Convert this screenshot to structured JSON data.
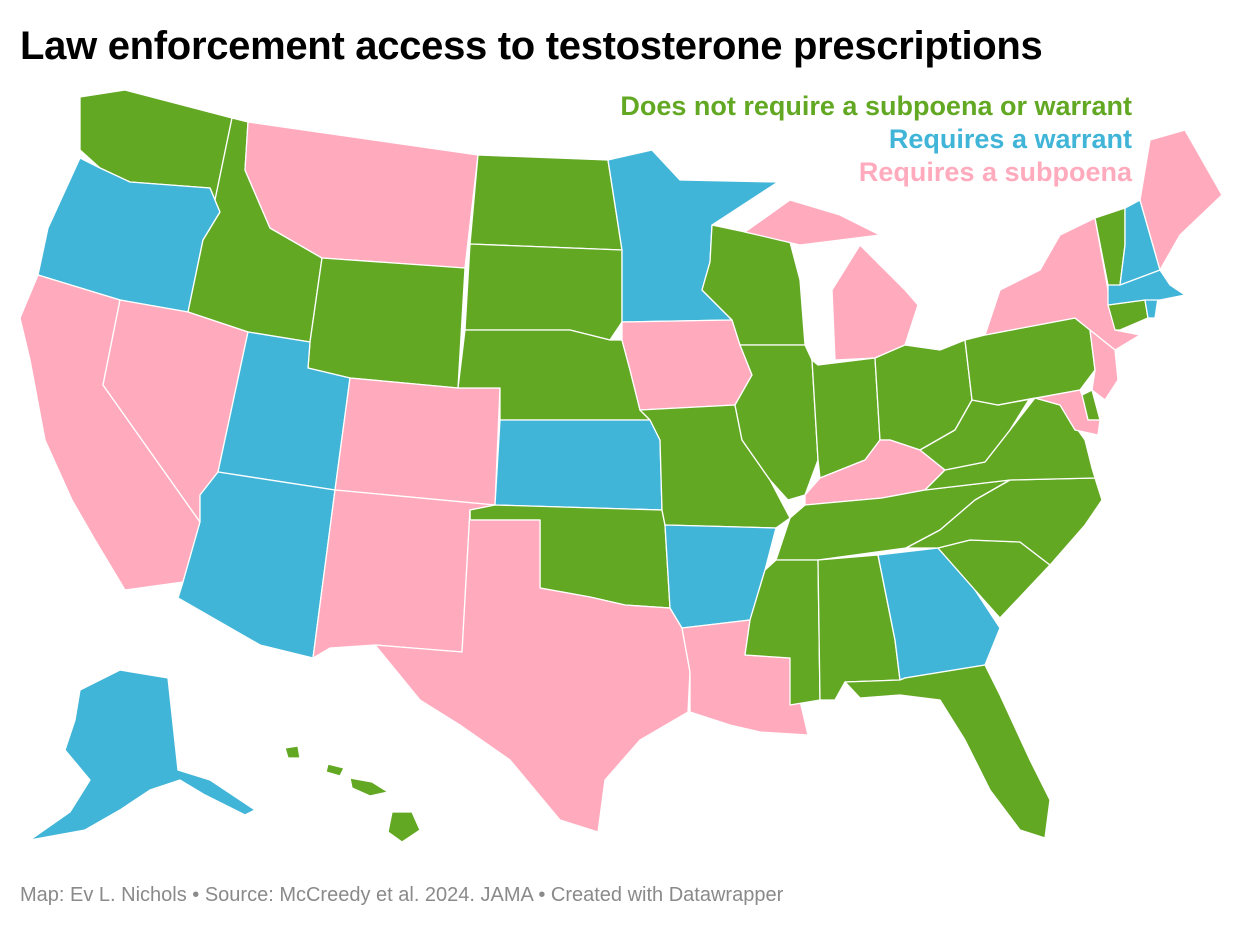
{
  "title": "Law enforcement access to testosterone prescriptions",
  "legend": [
    {
      "key": "none",
      "label": "Does not require a subpoena or warrant",
      "color": "#62a823"
    },
    {
      "key": "warrant",
      "label": "Requires a warrant",
      "color": "#40b5d8"
    },
    {
      "key": "subpoena",
      "label": "Requires a subpoena",
      "color": "#ffabbd"
    }
  ],
  "states": {
    "WA": "none",
    "OR": "warrant",
    "CA": "subpoena",
    "ID": "none",
    "NV": "subpoena",
    "MT": "subpoena",
    "WY": "none",
    "UT": "warrant",
    "AZ": "warrant",
    "CO": "subpoena",
    "NM": "subpoena",
    "ND": "none",
    "SD": "none",
    "NE": "none",
    "KS": "warrant",
    "OK": "none",
    "TX": "subpoena",
    "MN": "warrant",
    "IA": "subpoena",
    "MO": "none",
    "AR": "warrant",
    "LA": "subpoena",
    "WI": "none",
    "IL": "none",
    "MI": "subpoena",
    "IN": "none",
    "OH": "none",
    "KY": "subpoena",
    "TN": "none",
    "MS": "none",
    "AL": "none",
    "GA": "warrant",
    "FL": "none",
    "SC": "none",
    "NC": "none",
    "VA": "none",
    "WV": "none",
    "PA": "none",
    "NY": "subpoena",
    "NJ": "subpoena",
    "DE": "none",
    "MD": "subpoena",
    "CT": "none",
    "RI": "warrant",
    "MA": "warrant",
    "VT": "none",
    "NH": "warrant",
    "ME": "subpoena",
    "AK": "warrant",
    "HI": "none"
  },
  "footer": "Map: Ev L. Nichols • Source: McCreedy et al. 2024. JAMA • Created with Datawrapper"
}
